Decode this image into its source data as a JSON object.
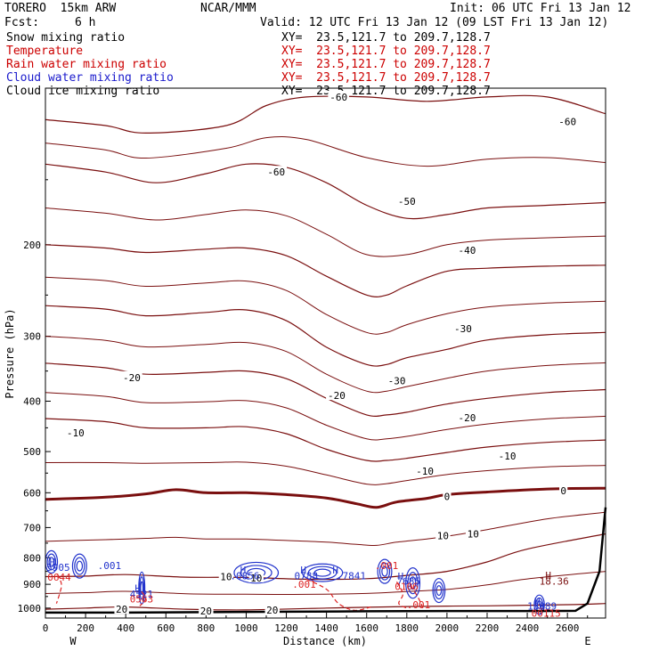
{
  "header": {
    "model": "TORERO  15km ARW",
    "org": "NCAR/MMM",
    "init": "Init: 06 UTC Fri 13 Jan 12",
    "fcst_label": "Fcst:",
    "fcst_value": "6 h",
    "valid": "Valid: 12 UTC Fri 13 Jan 12 (09 LST Fri 13 Jan 12)"
  },
  "fields": [
    {
      "name": "Snow mixing ratio",
      "color": "#000000",
      "xy": "XY=  23.5,121.7 to 209.7,128.7"
    },
    {
      "name": "Temperature",
      "color": "#cc0000",
      "xy": "XY=  23.5,121.7 to 209.7,128.7"
    },
    {
      "name": "Rain water mixing ratio",
      "color": "#cc0000",
      "xy": "XY=  23.5,121.7 to 209.7,128.7"
    },
    {
      "name": "Cloud water mixing ratio",
      "color": "#1a1acc",
      "xy": "XY=  23.5,121.7 to 209.7,128.7"
    },
    {
      "name": "Cloud ice mixing ratio",
      "color": "#000000",
      "xy": "XY=  23.5,121.7 to 209.7,128.7"
    }
  ],
  "colors": {
    "temperature": "#7a0f0f",
    "rain": "#dd2222",
    "cloud_water": "#2233cc",
    "terrain": "#000000"
  },
  "chart_data": {
    "type": "line",
    "xlabel": "Distance (km)",
    "ylabel": "Pressure (hPa)",
    "x_ticks": [
      0,
      200,
      400,
      600,
      800,
      1000,
      1200,
      1400,
      1600,
      1800,
      2000,
      2200,
      2400,
      2600
    ],
    "y_ticks": [
      200,
      300,
      400,
      500,
      600,
      700,
      800,
      900,
      1000
    ],
    "xlim": [
      0,
      2790
    ],
    "ylim": [
      1045,
      100
    ],
    "y_scale": "log",
    "left_label": "W",
    "right_label": "E",
    "isotherms": [
      {
        "value": -60,
        "label": "-60",
        "points": [
          [
            0,
            115
          ],
          [
            300,
            118
          ],
          [
            500,
            122
          ],
          [
            900,
            118
          ],
          [
            1100,
            108
          ],
          [
            1300,
            104
          ],
          [
            1600,
            104
          ],
          [
            1900,
            106
          ],
          [
            2200,
            104
          ],
          [
            2500,
            104
          ],
          [
            2790,
            112
          ]
        ]
      },
      {
        "value": -50,
        "label": "-50",
        "points": [
          [
            0,
            140
          ],
          [
            300,
            145
          ],
          [
            550,
            152
          ],
          [
            800,
            146
          ],
          [
            1000,
            140
          ],
          [
            1200,
            142
          ],
          [
            1400,
            152
          ],
          [
            1600,
            168
          ],
          [
            1800,
            178
          ],
          [
            2000,
            175
          ],
          [
            2200,
            170
          ],
          [
            2500,
            168
          ],
          [
            2790,
            166
          ]
        ]
      },
      {
        "value": -40,
        "label": "-40",
        "points": [
          [
            0,
            200
          ],
          [
            300,
            203
          ],
          [
            500,
            207
          ],
          [
            800,
            204
          ],
          [
            1000,
            203
          ],
          [
            1200,
            210
          ],
          [
            1400,
            230
          ],
          [
            1600,
            250
          ],
          [
            1700,
            250
          ],
          [
            1800,
            240
          ],
          [
            2000,
            225
          ],
          [
            2200,
            222
          ],
          [
            2500,
            220
          ],
          [
            2790,
            219
          ]
        ]
      },
      {
        "value": -30,
        "label": "-30",
        "points": [
          [
            0,
            262
          ],
          [
            300,
            266
          ],
          [
            500,
            274
          ],
          [
            800,
            270
          ],
          [
            1000,
            267
          ],
          [
            1200,
            280
          ],
          [
            1400,
            315
          ],
          [
            1600,
            340
          ],
          [
            1700,
            340
          ],
          [
            1800,
            330
          ],
          [
            2000,
            318
          ],
          [
            2200,
            305
          ],
          [
            2500,
            298
          ],
          [
            2790,
            295
          ]
        ]
      },
      {
        "value": -20,
        "label": "-20",
        "points": [
          [
            0,
            338
          ],
          [
            300,
            345
          ],
          [
            500,
            355
          ],
          [
            800,
            352
          ],
          [
            1000,
            350
          ],
          [
            1200,
            362
          ],
          [
            1400,
            395
          ],
          [
            1600,
            425
          ],
          [
            1700,
            425
          ],
          [
            1800,
            420
          ],
          [
            2000,
            405
          ],
          [
            2200,
            395
          ],
          [
            2500,
            385
          ],
          [
            2790,
            380
          ]
        ]
      },
      {
        "value": -10,
        "label": "-10",
        "points": [
          [
            0,
            432
          ],
          [
            300,
            438
          ],
          [
            500,
            450
          ],
          [
            800,
            450
          ],
          [
            1000,
            448
          ],
          [
            1200,
            462
          ],
          [
            1400,
            495
          ],
          [
            1600,
            520
          ],
          [
            1700,
            520
          ],
          [
            1800,
            515
          ],
          [
            2000,
            502
          ],
          [
            2200,
            490
          ],
          [
            2500,
            480
          ],
          [
            2790,
            475
          ]
        ]
      },
      {
        "value": 0,
        "label": "0",
        "bold": true,
        "points": [
          [
            0,
            618
          ],
          [
            300,
            612
          ],
          [
            500,
            603
          ],
          [
            650,
            592
          ],
          [
            800,
            600
          ],
          [
            1000,
            600
          ],
          [
            1200,
            605
          ],
          [
            1400,
            614
          ],
          [
            1550,
            630
          ],
          [
            1650,
            640
          ],
          [
            1750,
            625
          ],
          [
            1900,
            615
          ],
          [
            2000,
            605
          ],
          [
            2200,
            598
          ],
          [
            2500,
            590
          ],
          [
            2790,
            588
          ]
        ]
      },
      {
        "value": 10,
        "label": "10",
        "points": [
          [
            0,
            870
          ],
          [
            200,
            868
          ],
          [
            400,
            862
          ],
          [
            700,
            872
          ],
          [
            1000,
            873
          ],
          [
            1300,
            880
          ],
          [
            1600,
            878
          ],
          [
            1800,
            865
          ],
          [
            2000,
            850
          ],
          [
            2200,
            815
          ],
          [
            2400,
            770
          ],
          [
            2790,
            720
          ]
        ]
      },
      {
        "value": 20,
        "label": "20",
        "points": [
          [
            0,
            1005
          ],
          [
            200,
            1000
          ],
          [
            400,
            995
          ],
          [
            700,
            1005
          ],
          [
            1000,
            1008
          ],
          [
            1400,
            1000
          ],
          [
            1800,
            993
          ],
          [
            2200,
            990
          ],
          [
            2600,
            985
          ],
          [
            2790,
            980
          ]
        ]
      }
    ],
    "terrain": [
      [
        0,
        1020
      ],
      [
        400,
        1020
      ],
      [
        800,
        1018
      ],
      [
        1200,
        1016
      ],
      [
        1600,
        1014
      ],
      [
        2000,
        1013
      ],
      [
        2400,
        1013
      ],
      [
        2640,
        1012
      ],
      [
        2700,
        980
      ],
      [
        2760,
        850
      ],
      [
        2790,
        640
      ]
    ],
    "extra_temp_labels": [
      {
        "text": "-60",
        "x": 1460,
        "p": 104
      },
      {
        "text": "-60",
        "x": 2600,
        "p": 116
      },
      {
        "text": "-60",
        "x": 1150,
        "p": 145
      },
      {
        "text": "-50",
        "x": 1800,
        "p": 165
      },
      {
        "text": "-40",
        "x": 2100,
        "p": 205
      },
      {
        "text": "-30",
        "x": 1750,
        "p": 365
      },
      {
        "text": "-30",
        "x": 2080,
        "p": 290
      },
      {
        "text": "-20",
        "x": 1450,
        "p": 390
      },
      {
        "text": "-20",
        "x": 430,
        "p": 360
      },
      {
        "text": "-20",
        "x": 2100,
        "p": 430
      },
      {
        "text": "-10",
        "x": 150,
        "p": 460
      },
      {
        "text": "-10",
        "x": 2300,
        "p": 510
      },
      {
        "text": "-10",
        "x": 1890,
        "p": 545
      },
      {
        "text": "0",
        "x": 2580,
        "p": 595
      },
      {
        "text": "0",
        "x": 2000,
        "p": 610
      },
      {
        "text": "10",
        "x": 1980,
        "p": 725
      },
      {
        "text": "10",
        "x": 2130,
        "p": 720
      },
      {
        "text": "10",
        "x": 900,
        "p": 870
      },
      {
        "text": "10",
        "x": 1050,
        "p": 875
      },
      {
        "text": "20",
        "x": 380,
        "p": 1005
      },
      {
        "text": "20",
        "x": 800,
        "p": 1012
      },
      {
        "text": "20",
        "x": 1130,
        "p": 1008
      }
    ],
    "annotations": [
      {
        "text": "H",
        "x": 20,
        "p": 815,
        "color": "#2233cc"
      },
      {
        "text": "5905",
        "x": 5,
        "p": 835,
        "color": "#2233cc"
      },
      {
        "text": ".001",
        "x": 260,
        "p": 828,
        "color": "#2233cc"
      },
      {
        "text": "0644",
        "x": 10,
        "p": 872,
        "color": "#dd2222"
      },
      {
        "text": "H",
        "x": 445,
        "p": 915,
        "color": "#2233cc"
      },
      {
        "text": "4521",
        "x": 420,
        "p": 940,
        "color": "#2233cc"
      },
      {
        "text": "0563",
        "x": 420,
        "p": 960,
        "color": "#dd2222"
      },
      {
        "text": "H",
        "x": 970,
        "p": 845,
        "color": "#2233cc"
      },
      {
        "text": ".0856",
        "x": 920,
        "p": 866,
        "color": "#2233cc"
      },
      {
        "text": "H",
        "x": 1270,
        "p": 845,
        "color": "#2233cc"
      },
      {
        "text": "0788",
        "x": 1240,
        "p": 866,
        "color": "#2233cc"
      },
      {
        "text": "H",
        "x": 1430,
        "p": 845,
        "color": "#2233cc"
      },
      {
        "text": ".7841",
        "x": 1450,
        "p": 866,
        "color": "#2233cc"
      },
      {
        "text": ".001",
        "x": 1230,
        "p": 900,
        "color": "#dd2222"
      },
      {
        "text": ".001",
        "x": 1640,
        "p": 828,
        "color": "#dd2222"
      },
      {
        "text": "H",
        "x": 1755,
        "p": 868,
        "color": "#2233cc"
      },
      {
        "text": "7685",
        "x": 1750,
        "p": 888,
        "color": "#2233cc"
      },
      {
        "text": "0106",
        "x": 1740,
        "p": 908,
        "color": "#dd2222"
      },
      {
        "text": ".001",
        "x": 1800,
        "p": 985,
        "color": "#dd2222"
      },
      {
        "text": "H",
        "x": 2490,
        "p": 865,
        "color": "#7a0f0f"
      },
      {
        "text": "18.36",
        "x": 2460,
        "p": 888,
        "color": "#7a0f0f"
      },
      {
        "text": "H",
        "x": 2435,
        "p": 970,
        "color": "#2233cc"
      },
      {
        "text": "13089",
        "x": 2400,
        "p": 990,
        "color": "#2233cc"
      },
      {
        "text": "00115",
        "x": 2420,
        "p": 1022,
        "color": "#dd2222"
      }
    ]
  }
}
